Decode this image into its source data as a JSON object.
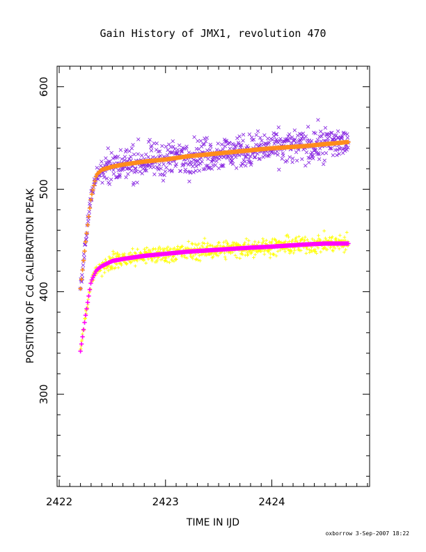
{
  "chart_data": {
    "type": "scatter",
    "title": "Gain History of JMX1, revolution 470",
    "xlabel": "TIME IN IJD",
    "ylabel": "POSITION OF Cd CALIBRATION PEAK",
    "xlim": [
      2421.98,
      2424.92
    ],
    "ylim": [
      210,
      620
    ],
    "x_ticks": [
      2422,
      2423,
      2424
    ],
    "x_tick_labels": [
      "2422",
      "2423",
      "2424"
    ],
    "y_ticks": [
      300,
      400,
      500,
      600
    ],
    "y_tick_labels": [
      "300",
      "400",
      "500",
      "600"
    ],
    "grid": false,
    "legend": false,
    "footer": "oxborrow  3-Sep-2007 18:22",
    "colors": {
      "upper_points": "#8a2be2",
      "upper_fit": "#ff8c1a",
      "lower_points": "#ffff00",
      "lower_fit": "#ff00ff"
    },
    "series": [
      {
        "marker": "x",
        "color": "#8a2be2",
        "x_range": [
          2422.2,
          2424.72
        ],
        "fit_color": "#ff8c1a",
        "x": [
          2422.2,
          2422.25,
          2422.3,
          2422.35,
          2422.4,
          2422.5,
          2422.6,
          2422.8,
          2423.0,
          2423.2,
          2423.5,
          2423.8,
          2424.0,
          2424.3,
          2424.5,
          2424.72
        ],
        "fit_y": [
          403,
          450,
          492,
          514,
          519,
          522,
          524,
          527,
          529,
          532,
          535,
          538,
          540,
          542,
          544,
          546
        ],
        "scatter_spread": 15
      },
      {
        "marker": "+",
        "color": "#ffff00",
        "x_range": [
          2422.2,
          2424.72
        ],
        "fit_color": "#ff00ff",
        "x": [
          2422.2,
          2422.25,
          2422.3,
          2422.35,
          2422.4,
          2422.5,
          2422.6,
          2422.8,
          2423.0,
          2423.2,
          2423.5,
          2423.8,
          2424.0,
          2424.3,
          2424.5,
          2424.72
        ],
        "fit_y": [
          342,
          378,
          410,
          421,
          425,
          430,
          432,
          435,
          437,
          439,
          441,
          443,
          444,
          446,
          447,
          447
        ],
        "scatter_spread": 8
      }
    ]
  }
}
